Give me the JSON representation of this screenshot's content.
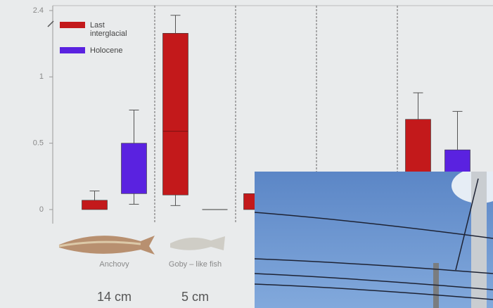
{
  "chart_data": {
    "type": "box",
    "categories": [
      "Anchovy",
      "Goby – like fish",
      null,
      null,
      null
    ],
    "sizes": [
      "14 cm",
      "5 cm",
      null,
      null,
      null
    ],
    "ylim": [
      -0.1,
      2.4
    ],
    "yticks": [
      0,
      0.5,
      1.0,
      2.4
    ],
    "series": [
      {
        "name": "Last interglacial",
        "color": "#c3191b",
        "q1": [
          0,
          0.11,
          0,
          null,
          null
        ],
        "q3": [
          0.07,
          1.92,
          0.12,
          null,
          0.68
        ],
        "median": [
          null,
          0.59,
          null,
          null,
          null
        ],
        "whisker_low": [
          null,
          0.03,
          null,
          null,
          null
        ],
        "whisker_high": [
          0.14,
          2.3,
          null,
          null,
          0.88
        ]
      },
      {
        "name": "Holocene",
        "color": "#5a22e0",
        "q1": [
          0.12,
          0,
          null,
          null,
          null
        ],
        "q3": [
          0.5,
          0,
          null,
          null,
          0.45
        ],
        "median": [
          null,
          null,
          null,
          null,
          null
        ],
        "whisker_low": [
          0.04,
          null,
          null,
          null,
          null
        ],
        "whisker_high": [
          0.75,
          null,
          null,
          null,
          0.74
        ]
      }
    ],
    "legend": "top-left"
  }
}
